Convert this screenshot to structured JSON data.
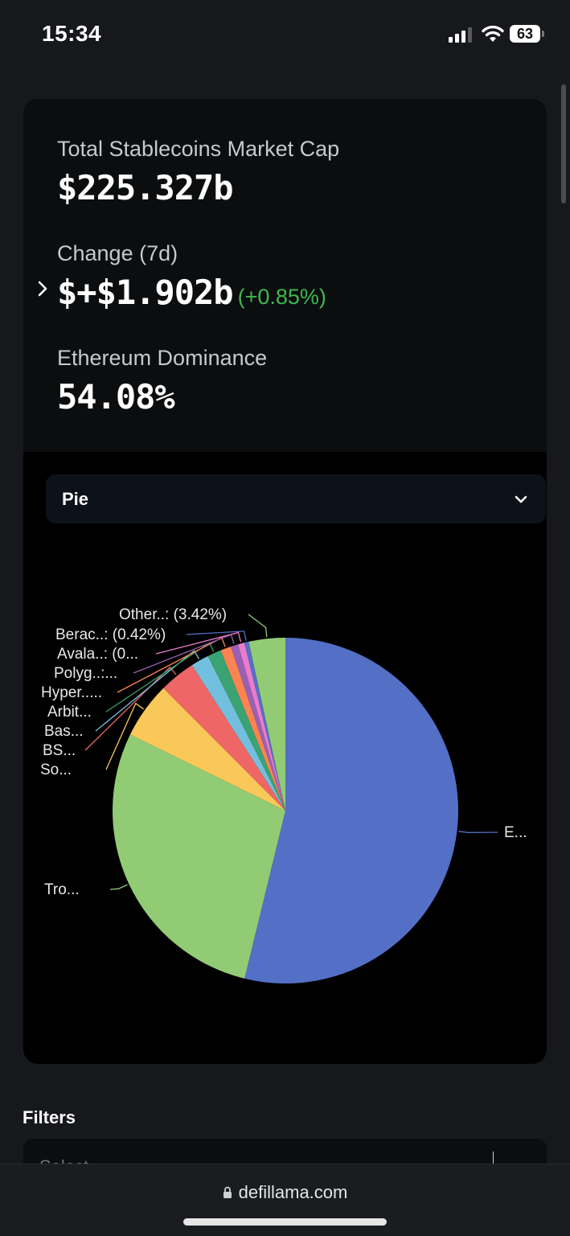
{
  "status_bar": {
    "time": "15:34",
    "battery": "63"
  },
  "summary": {
    "market_cap_label": "Total Stablecoins Market Cap",
    "market_cap_value": "$225.327b",
    "change_label": "Change (7d)",
    "change_value": "$+$1.902b",
    "change_percent": "(+0.85%)",
    "dominance_label": "Ethereum Dominance",
    "dominance_value": "54.08%"
  },
  "chart_select": {
    "selected": "Pie"
  },
  "chart_data": {
    "type": "pie",
    "title": "",
    "slices": [
      {
        "label": "E...",
        "percent": 54.08,
        "color": "#5470c6"
      },
      {
        "label": "Tro...",
        "percent": 28.6,
        "color": "#91cc75"
      },
      {
        "label": "So...",
        "percent": 5.3,
        "color": "#fac858"
      },
      {
        "label": "BS...",
        "percent": 3.4,
        "color": "#ee6666"
      },
      {
        "label": "Bas...",
        "percent": 1.7,
        "color": "#73c0de"
      },
      {
        "label": "Arbit...",
        "percent": 1.3,
        "color": "#3ba272"
      },
      {
        "label": "Hyper.....",
        "percent": 1.0,
        "color": "#fc8452"
      },
      {
        "label": "Polyg..:...",
        "percent": 0.7,
        "color": "#9a60b4"
      },
      {
        "label": "Avala..: (0...",
        "percent": 0.6,
        "color": "#ea7ccc"
      },
      {
        "label": "Berac..: (0.42%)",
        "percent": 0.42,
        "color": "#5470c6"
      },
      {
        "label": "Other..: (3.42%)",
        "percent": 3.42,
        "color": "#91cc75"
      }
    ]
  },
  "filters": {
    "title": "Filters",
    "placeholder": "Select"
  },
  "browser": {
    "url": "defillama.com"
  }
}
